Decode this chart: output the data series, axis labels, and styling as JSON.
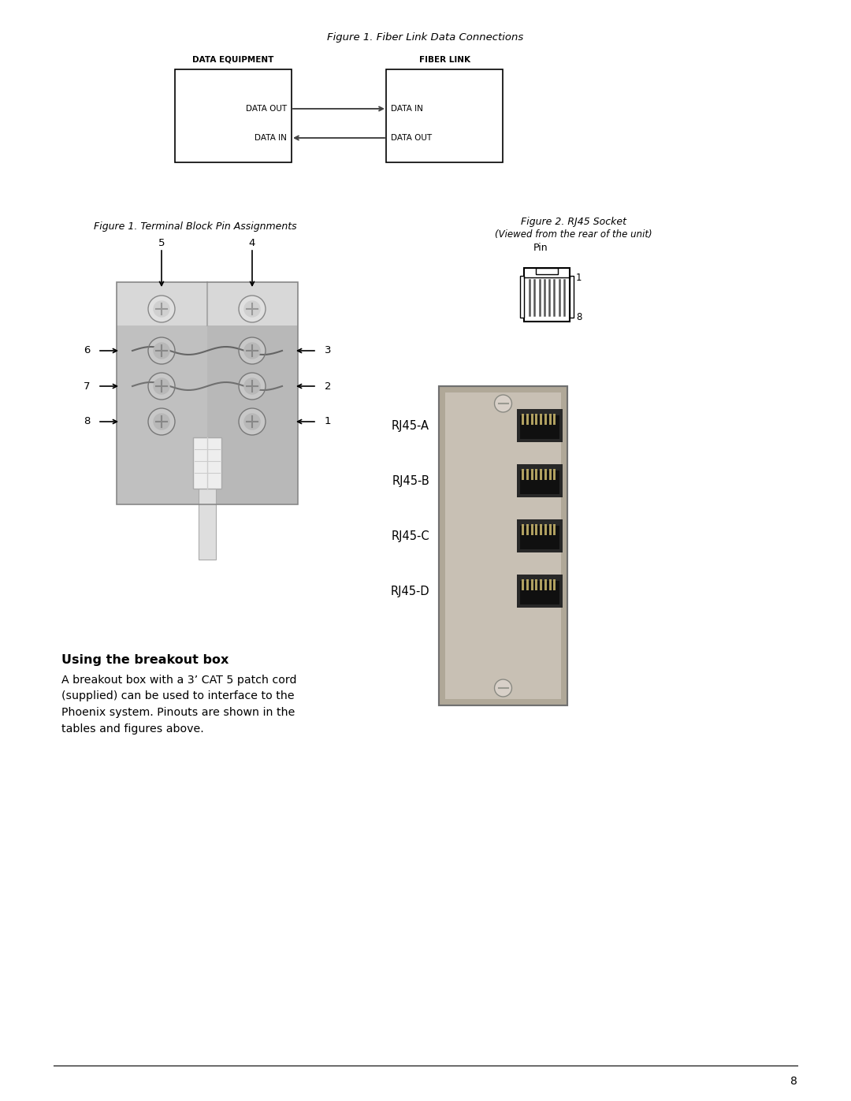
{
  "page_bg": "#ffffff",
  "fig_title": "Figure 1. Fiber Link Data Connections",
  "fig1_caption": "Figure 1. Terminal Block Pin Assignments",
  "fig2_caption_line1": "Figure 2. RJ45 Socket",
  "fig2_caption_line2": "(Viewed from the rear of the unit)",
  "box1_label": "DATA EQUIPMENT",
  "box2_label": "FIBER LINK",
  "box1_row1": "DATA OUT",
  "box1_row2": "DATA IN",
  "box2_row1": "DATA IN",
  "box2_row2": "DATA OUT",
  "pin_label": "Pin",
  "pin_1": "1",
  "pin_8": "8",
  "rj45_labels": [
    "RJ45-A",
    "RJ45-B",
    "RJ45-C",
    "RJ45-D"
  ],
  "breakout_title": "Using the breakout box",
  "breakout_text_lines": [
    "A breakout box with a 3’ CAT 5 patch cord",
    "(supplied) can be used to interface to the",
    "Phoenix system. Pinouts are shown in the",
    "tables and figures above."
  ],
  "page_number": "8",
  "font_color": "#000000",
  "arrow_color": "#666666",
  "tb_pin_labels_left": [
    "6",
    "7",
    "8"
  ],
  "tb_pin_labels_right": [
    "3",
    "2",
    "1"
  ],
  "tb_pin_top": [
    "5",
    "4"
  ]
}
